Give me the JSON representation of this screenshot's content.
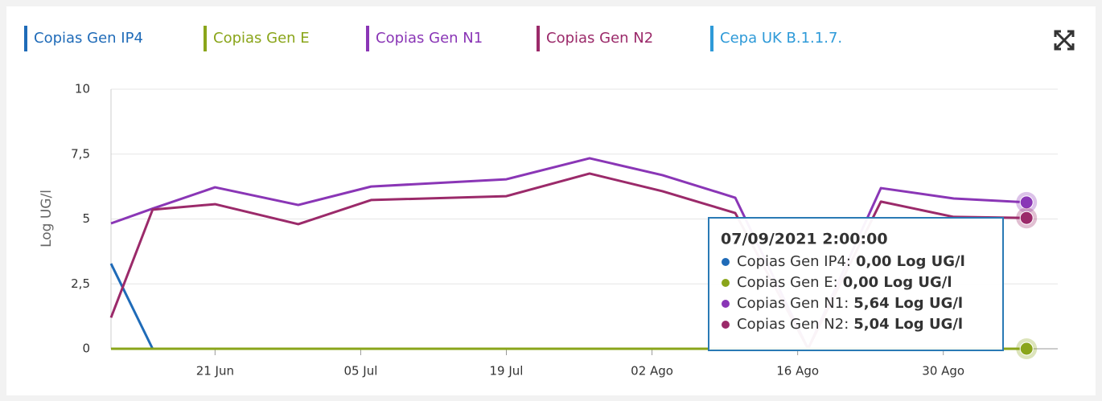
{
  "chart_data": {
    "type": "line",
    "y_label": "Log UG/l",
    "x": [
      "2021-06-11",
      "2021-06-15",
      "2021-06-21",
      "2021-06-29",
      "2021-07-06",
      "2021-07-19",
      "2021-07-27",
      "2021-08-03",
      "2021-08-10",
      "2021-08-17",
      "2021-08-24",
      "2021-08-31",
      "2021-09-07"
    ],
    "series": [
      {
        "name": "Copias Gen IP4",
        "color": "#1f6bb8",
        "values": [
          3.28,
          0,
          0,
          0,
          0,
          0,
          0,
          0,
          0,
          0,
          0,
          0,
          0
        ]
      },
      {
        "name": "Copias Gen E",
        "color": "#8aa51a",
        "values": [
          0,
          0,
          0,
          0,
          0,
          0,
          0,
          0,
          0,
          0,
          0,
          0,
          0
        ]
      },
      {
        "name": "Copias Gen N1",
        "color": "#8a36b6",
        "values": [
          4.83,
          5.4,
          6.22,
          5.54,
          6.25,
          6.53,
          7.34,
          6.69,
          5.82,
          0,
          6.19,
          5.79,
          5.64
        ]
      },
      {
        "name": "Copias Gen N2",
        "color": "#9b2a6a",
        "values": [
          1.2,
          5.36,
          5.57,
          4.8,
          5.73,
          5.88,
          6.75,
          6.07,
          5.23,
          0,
          5.67,
          5.08,
          5.04
        ]
      },
      {
        "name": "Cepa UK B.1.1.7.",
        "color": "#2e9ad8",
        "values": [
          null,
          null,
          null,
          null,
          null,
          null,
          null,
          null,
          null,
          null,
          null,
          null,
          null
        ]
      }
    ],
    "xlim": [
      "2021-06-11",
      "2021-09-10"
    ],
    "xticks": [
      {
        "value": "2021-06-21",
        "label": "21 Jun"
      },
      {
        "value": "2021-07-05",
        "label": "05 Jul"
      },
      {
        "value": "2021-07-19",
        "label": "19 Jul"
      },
      {
        "value": "2021-08-02",
        "label": "02 Ago"
      },
      {
        "value": "2021-08-16",
        "label": "16 Ago"
      },
      {
        "value": "2021-08-30",
        "label": "30 Ago"
      }
    ],
    "ylim": [
      0,
      10
    ],
    "yticks": [
      0,
      {
        "value": 2.5,
        "label": "2,5"
      },
      5,
      {
        "value": 7.5,
        "label": "7,5"
      },
      10
    ],
    "grid": true,
    "legend": "top",
    "tooltip": {
      "title": "07/09/2021 2:00:00",
      "items": [
        {
          "name": "Copias Gen IP4:",
          "value": "0,00 Log UG/l"
        },
        {
          "name": "Copias Gen E:",
          "value": "0,00 Log UG/l"
        },
        {
          "name": "Copias Gen N1:",
          "value": "5,64 Log UG/l"
        },
        {
          "name": "Copias Gen N2:",
          "value": "5,04 Log UG/l"
        }
      ]
    }
  }
}
